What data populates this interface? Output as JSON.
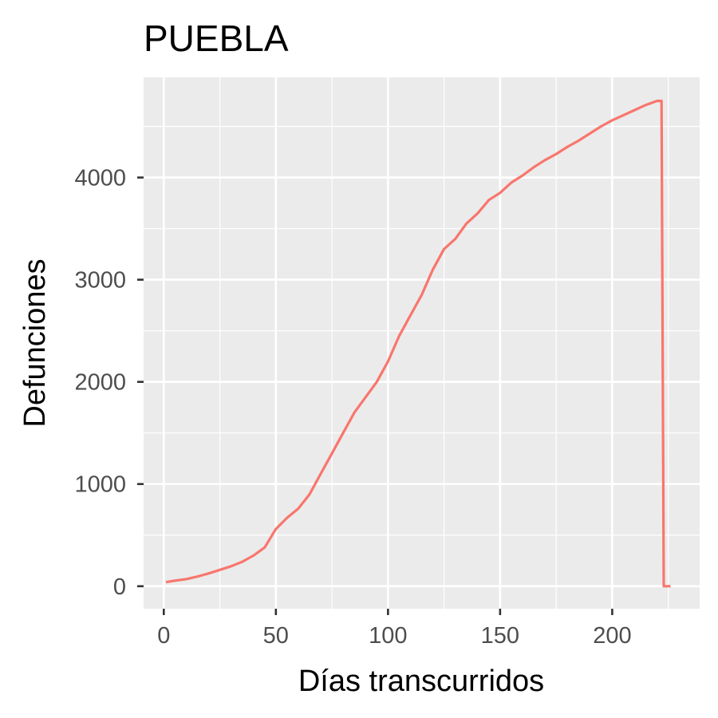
{
  "chart_data": {
    "type": "line",
    "title": "PUEBLA",
    "xlabel": "Días transcurridos",
    "ylabel": "Defunciones",
    "xlim": [
      -9,
      239
    ],
    "ylim": [
      -220,
      4980
    ],
    "x_ticks": [
      0,
      50,
      100,
      150,
      200
    ],
    "x_tick_labels": [
      "0",
      "50",
      "100",
      "150",
      "200"
    ],
    "y_ticks": [
      0,
      1000,
      2000,
      3000,
      4000
    ],
    "y_tick_labels": [
      "0",
      "1000",
      "2000",
      "3000",
      "4000"
    ],
    "grid": true,
    "legend": "none",
    "series": [
      {
        "color": "#F8766D",
        "x": [
          1,
          5,
          10,
          15,
          20,
          25,
          30,
          35,
          40,
          45,
          50,
          55,
          60,
          65,
          70,
          75,
          80,
          85,
          90,
          95,
          100,
          105,
          110,
          115,
          120,
          125,
          130,
          135,
          140,
          145,
          150,
          155,
          160,
          165,
          170,
          175,
          180,
          185,
          190,
          195,
          200,
          205,
          210,
          215,
          220,
          222,
          223,
          226
        ],
        "y": [
          40,
          55,
          70,
          95,
          125,
          160,
          195,
          240,
          300,
          380,
          560,
          670,
          760,
          900,
          1100,
          1300,
          1500,
          1700,
          1850,
          2000,
          2200,
          2450,
          2650,
          2850,
          3100,
          3300,
          3400,
          3550,
          3650,
          3780,
          3850,
          3950,
          4020,
          4100,
          4170,
          4230,
          4300,
          4360,
          4430,
          4500,
          4560,
          4610,
          4660,
          4710,
          4750,
          4750,
          0,
          0
        ]
      }
    ]
  }
}
